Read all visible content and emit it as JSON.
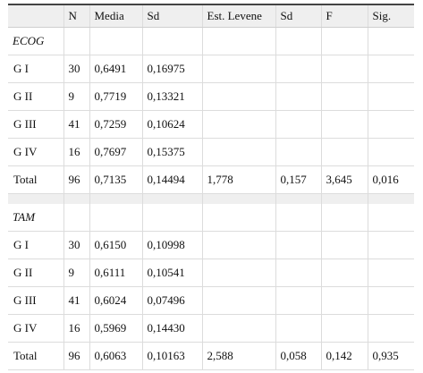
{
  "headers": [
    "",
    "N",
    "Media",
    "Sd",
    "Est. Levene",
    "Sd",
    "F",
    "Sig."
  ],
  "groups": [
    {
      "title": "ECOG",
      "rows": [
        {
          "label": "G I",
          "n": "30",
          "media": "0,6491",
          "sd": "0,16975",
          "levene": "",
          "sd2": "",
          "f": "",
          "sig": ""
        },
        {
          "label": "G II",
          "n": "9",
          "media": "0,7719",
          "sd": "0,13321",
          "levene": "",
          "sd2": "",
          "f": "",
          "sig": ""
        },
        {
          "label": "G III",
          "n": "41",
          "media": "0,7259",
          "sd": "0,10624",
          "levene": "",
          "sd2": "",
          "f": "",
          "sig": ""
        },
        {
          "label": "G IV",
          "n": "16",
          "media": "0,7697",
          "sd": "0,15375",
          "levene": "",
          "sd2": "",
          "f": "",
          "sig": ""
        },
        {
          "label": "Total",
          "n": "96",
          "media": "0,7135",
          "sd": "0,14494",
          "levene": "1,778",
          "sd2": "0,157",
          "f": "3,645",
          "sig": "0,016"
        }
      ]
    },
    {
      "title": "TAM",
      "rows": [
        {
          "label": "G I",
          "n": "30",
          "media": "0,6150",
          "sd": "0,10998",
          "levene": "",
          "sd2": "",
          "f": "",
          "sig": ""
        },
        {
          "label": "G II",
          "n": "9",
          "media": "0,6111",
          "sd": "0,10541",
          "levene": "",
          "sd2": "",
          "f": "",
          "sig": ""
        },
        {
          "label": "G III",
          "n": "41",
          "media": "0,6024",
          "sd": "0,07496",
          "levene": "",
          "sd2": "",
          "f": "",
          "sig": ""
        },
        {
          "label": "G IV",
          "n": "16",
          "media": "0,5969",
          "sd": "0,14430",
          "levene": "",
          "sd2": "",
          "f": "",
          "sig": ""
        },
        {
          "label": "Total",
          "n": "96",
          "media": "0,6063",
          "sd": "0,10163",
          "levene": "2,588",
          "sd2": "0,058",
          "f": "0,142",
          "sig": "0,935"
        }
      ]
    }
  ]
}
